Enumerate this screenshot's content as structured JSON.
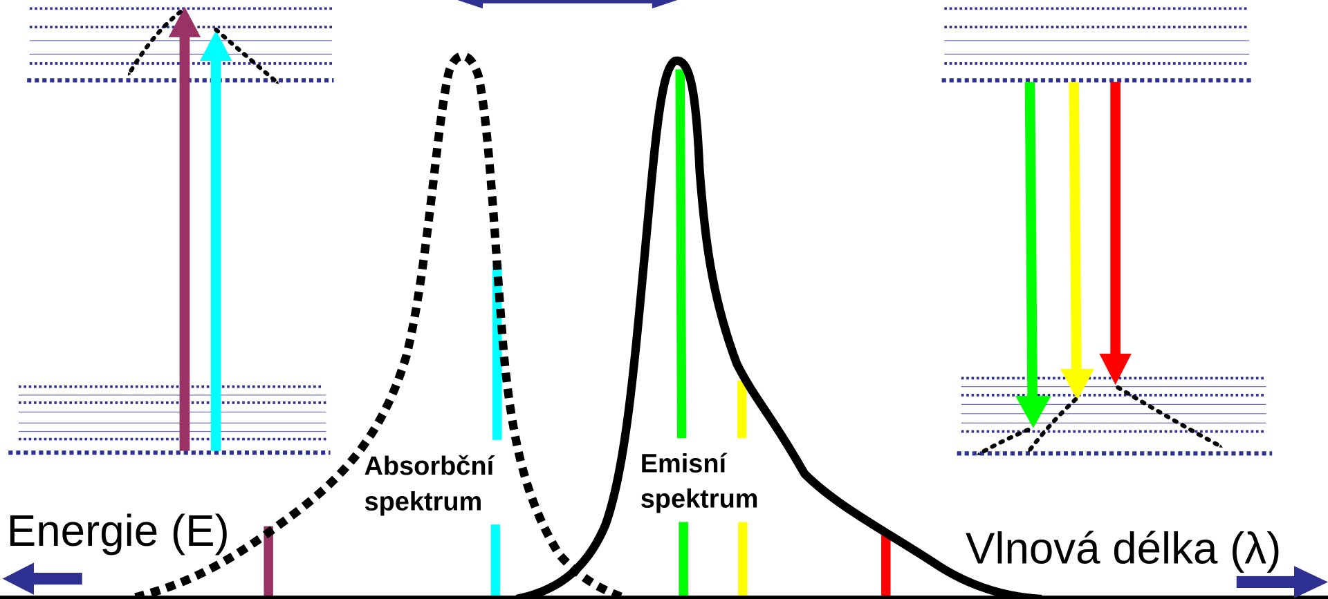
{
  "axes": {
    "energy": "Energie (E)",
    "wavelength": "Vlnová délka (λ)"
  },
  "spectra": [
    {
      "lines": [
        "Absorbční",
        "spektrum"
      ]
    },
    {
      "lines": [
        "Emisní",
        "spektrum"
      ]
    }
  ]
}
